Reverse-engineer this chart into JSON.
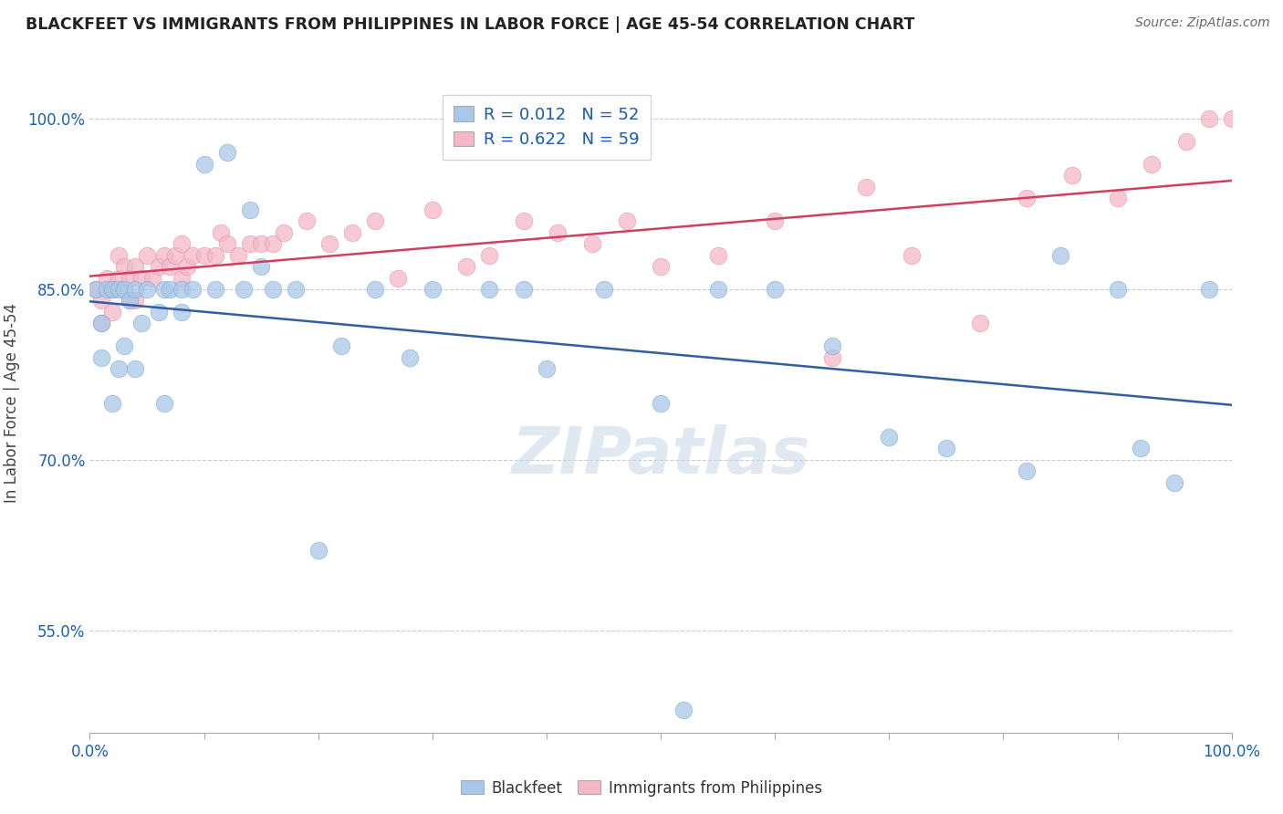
{
  "title": "BLACKFEET VS IMMIGRANTS FROM PHILIPPINES IN LABOR FORCE | AGE 45-54 CORRELATION CHART",
  "source": "Source: ZipAtlas.com",
  "ylabel": "In Labor Force | Age 45-54",
  "xlim": [
    0.0,
    1.0
  ],
  "ylim": [
    0.46,
    1.04
  ],
  "ytick_vals": [
    0.55,
    0.7,
    0.85,
    1.0
  ],
  "ytick_labels": [
    "55.0%",
    "70.0%",
    "85.0%",
    "100.0%"
  ],
  "blackfeet_R": 0.012,
  "blackfeet_N": 52,
  "philippines_R": 0.622,
  "philippines_N": 59,
  "legend_label_blue": "Blackfeet",
  "legend_label_pink": "Immigrants from Philippines",
  "blue_color": "#a8c8e8",
  "blue_edge_color": "#7aaad0",
  "blue_line_color": "#3060a0",
  "pink_color": "#f4b8c8",
  "pink_edge_color": "#e090a8",
  "pink_line_color": "#d04060",
  "legend_R_color": "#1a5fb4",
  "title_color": "#222222",
  "grid_color": "#cccccc",
  "blackfeet_x": [
    0.005,
    0.01,
    0.01,
    0.015,
    0.02,
    0.02,
    0.025,
    0.025,
    0.03,
    0.03,
    0.035,
    0.04,
    0.04,
    0.045,
    0.05,
    0.06,
    0.065,
    0.065,
    0.07,
    0.08,
    0.08,
    0.09,
    0.1,
    0.11,
    0.12,
    0.135,
    0.14,
    0.15,
    0.16,
    0.18,
    0.2,
    0.22,
    0.25,
    0.28,
    0.3,
    0.35,
    0.38,
    0.4,
    0.45,
    0.5,
    0.52,
    0.55,
    0.6,
    0.65,
    0.7,
    0.75,
    0.82,
    0.85,
    0.9,
    0.92,
    0.95,
    0.98
  ],
  "blackfeet_y": [
    0.85,
    0.82,
    0.79,
    0.85,
    0.75,
    0.85,
    0.78,
    0.85,
    0.8,
    0.85,
    0.84,
    0.78,
    0.85,
    0.82,
    0.85,
    0.83,
    0.75,
    0.85,
    0.85,
    0.83,
    0.85,
    0.85,
    0.96,
    0.85,
    0.97,
    0.85,
    0.92,
    0.87,
    0.85,
    0.85,
    0.62,
    0.8,
    0.85,
    0.79,
    0.85,
    0.85,
    0.85,
    0.78,
    0.85,
    0.75,
    0.48,
    0.85,
    0.85,
    0.8,
    0.72,
    0.71,
    0.69,
    0.88,
    0.85,
    0.71,
    0.68,
    0.85
  ],
  "philippines_x": [
    0.005,
    0.01,
    0.01,
    0.015,
    0.02,
    0.02,
    0.025,
    0.025,
    0.03,
    0.035,
    0.035,
    0.04,
    0.04,
    0.045,
    0.05,
    0.055,
    0.06,
    0.065,
    0.07,
    0.075,
    0.08,
    0.08,
    0.085,
    0.09,
    0.1,
    0.11,
    0.115,
    0.12,
    0.13,
    0.14,
    0.15,
    0.16,
    0.17,
    0.19,
    0.21,
    0.23,
    0.25,
    0.27,
    0.3,
    0.33,
    0.35,
    0.38,
    0.41,
    0.44,
    0.47,
    0.5,
    0.55,
    0.6,
    0.65,
    0.68,
    0.72,
    0.78,
    0.82,
    0.86,
    0.9,
    0.93,
    0.96,
    0.98,
    1.0
  ],
  "philippines_y": [
    0.85,
    0.84,
    0.82,
    0.86,
    0.85,
    0.83,
    0.88,
    0.86,
    0.87,
    0.86,
    0.84,
    0.87,
    0.84,
    0.86,
    0.88,
    0.86,
    0.87,
    0.88,
    0.87,
    0.88,
    0.89,
    0.86,
    0.87,
    0.88,
    0.88,
    0.88,
    0.9,
    0.89,
    0.88,
    0.89,
    0.89,
    0.89,
    0.9,
    0.91,
    0.89,
    0.9,
    0.91,
    0.86,
    0.92,
    0.87,
    0.88,
    0.91,
    0.9,
    0.89,
    0.91,
    0.87,
    0.88,
    0.91,
    0.79,
    0.94,
    0.88,
    0.82,
    0.93,
    0.95,
    0.93,
    0.96,
    0.98,
    1.0,
    1.0
  ]
}
